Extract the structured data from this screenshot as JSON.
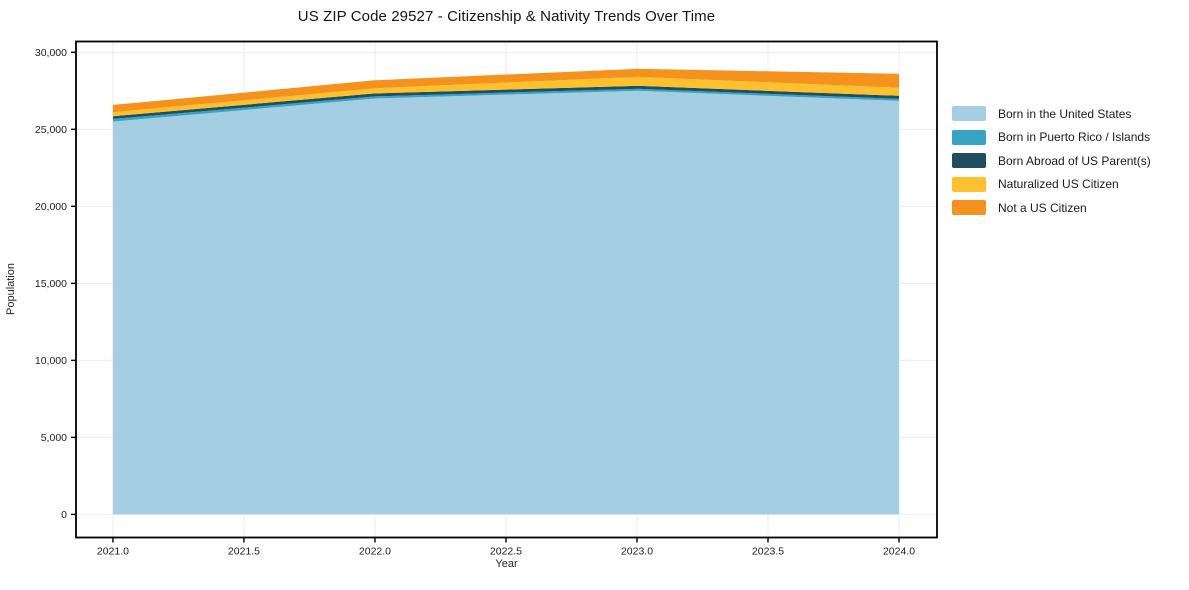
{
  "title": "US ZIP Code 29527 - Citizenship & Nativity Trends Over Time",
  "chart_data": {
    "type": "area",
    "stacked": true,
    "title": "US ZIP Code 29527 - Citizenship & Nativity Trends Over Time",
    "xlabel": "Year",
    "ylabel": "Population",
    "x": [
      2021,
      2022,
      2023,
      2024
    ],
    "series": [
      {
        "name": "Born in the United States",
        "color": "#a6cee3",
        "values": [
          25500,
          27000,
          27500,
          26850
        ]
      },
      {
        "name": "Born in Puerto Rico / Islands",
        "color": "#38a3c2",
        "values": [
          175,
          135,
          130,
          130
        ]
      },
      {
        "name": "Born Abroad of US Parent(s)",
        "color": "#1f4e5f",
        "values": [
          175,
          195,
          195,
          195
        ]
      },
      {
        "name": "Naturalized US Citizen",
        "color": "#fcc12d",
        "values": [
          260,
          330,
          585,
          520
        ]
      },
      {
        "name": "Not a US Citizen",
        "color": "#f5921e",
        "values": [
          475,
          520,
          520,
          910
        ]
      }
    ],
    "totals": [
      26585,
      28180,
      28930,
      28605
    ],
    "xlim": [
      2020.859,
      2024.145
    ],
    "ylim": [
      -1500,
      30700
    ],
    "x_ticks": [
      2021.0,
      2021.5,
      2022.0,
      2022.5,
      2023.0,
      2023.5,
      2024.0
    ],
    "x_tick_labels": [
      "2021.0",
      "2021.5",
      "2022.0",
      "2022.5",
      "2023.0",
      "2023.5",
      "2024.0"
    ],
    "y_ticks": [
      0,
      5000,
      10000,
      15000,
      20000,
      25000,
      30000
    ],
    "y_tick_labels": [
      "0",
      "5,000",
      "10,000",
      "15,000",
      "20,000",
      "25,000",
      "30,000"
    ],
    "grid": true,
    "legend_position": "right"
  },
  "colors": {
    "grid": "#ebebeb",
    "spine": "#000000",
    "tick_label": "#1c1c1c"
  }
}
